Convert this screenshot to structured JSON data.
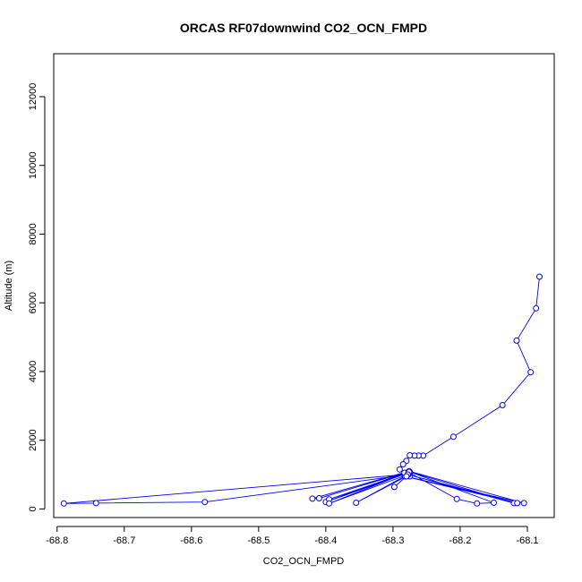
{
  "chart_data": {
    "type": "line",
    "title": "ORCAS RF07downwind CO2_OCN_FMPD",
    "xlabel": "CO2_OCN_FMPD",
    "ylabel": "Altitude (m)",
    "xlim": [
      -68.805,
      -68.06
    ],
    "ylim": [
      -250,
      13250
    ],
    "xticks": [
      -68.8,
      -68.7,
      -68.6,
      -68.5,
      -68.4,
      -68.3,
      -68.2,
      -68.1
    ],
    "xtick_labels": [
      "-68.8",
      "-68.7",
      "-68.6",
      "-68.5",
      "-68.4",
      "-68.3",
      "-68.2",
      "-68.1"
    ],
    "yticks": [
      0,
      2000,
      4000,
      6000,
      8000,
      10000,
      12000
    ],
    "ytick_labels": [
      "0",
      "2000",
      "4000",
      "6000",
      "8000",
      "10000",
      "12000"
    ],
    "grid": false,
    "line_color": "#0000ff",
    "marker": "open-circle",
    "series": [
      {
        "x": [
          -68.082,
          -68.087,
          -68.116,
          -68.095,
          -68.137,
          -68.21,
          -68.255,
          -68.262,
          -68.268,
          -68.275,
          -68.28,
          -68.285,
          -68.29,
          -68.28,
          -68.275,
          -68.278,
          -68.282,
          -68.79,
          -68.742,
          -68.58,
          -68.277,
          -68.275,
          -68.205,
          -68.175,
          -68.15,
          -68.275,
          -68.12,
          -68.278,
          -68.115,
          -68.282,
          -68.105,
          -68.276,
          -68.42,
          -68.41,
          -68.283,
          -68.4,
          -68.277,
          -68.395,
          -68.276,
          -68.395,
          -68.278,
          -68.355,
          -68.28,
          -68.298
        ],
        "y": [
          6760,
          5840,
          4900,
          3980,
          3020,
          2100,
          1550,
          1550,
          1550,
          1560,
          1400,
          1300,
          1150,
          1050,
          950,
          1000,
          1000,
          160,
          170,
          200,
          1000,
          1050,
          290,
          160,
          180,
          1080,
          170,
          1000,
          170,
          950,
          170,
          1100,
          300,
          310,
          1050,
          200,
          1050,
          280,
          1080,
          160,
          1000,
          180,
          950,
          640
        ]
      }
    ]
  }
}
